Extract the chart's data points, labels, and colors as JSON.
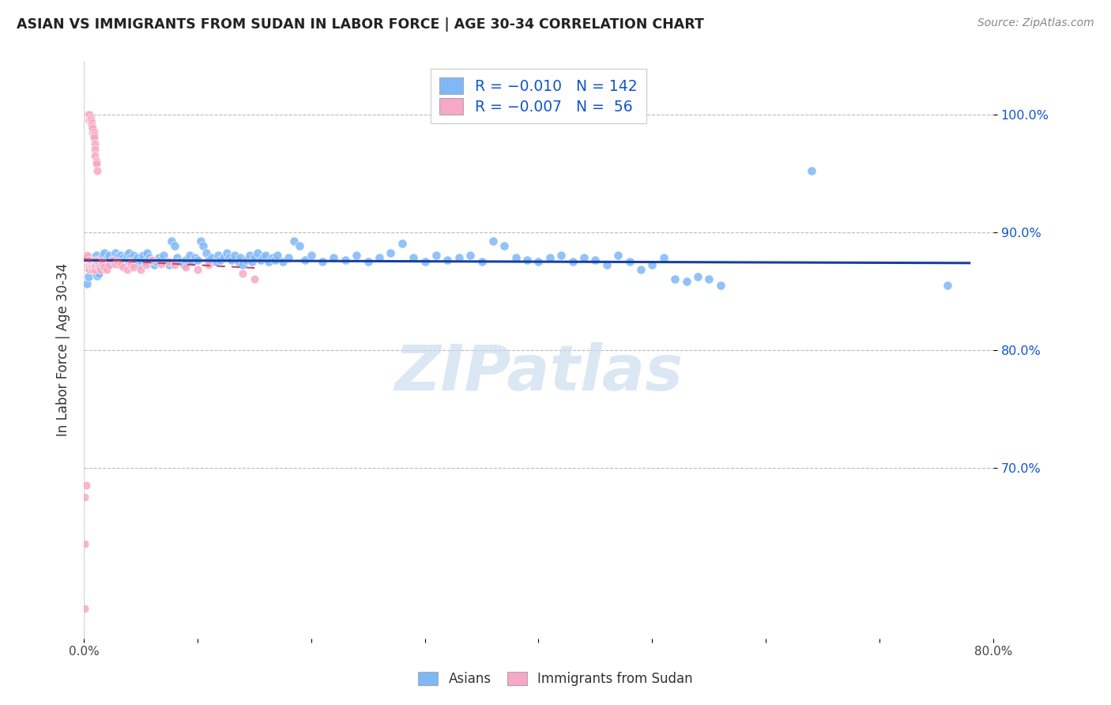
{
  "title": "ASIAN VS IMMIGRANTS FROM SUDAN IN LABOR FORCE | AGE 30-34 CORRELATION CHART",
  "source": "Source: ZipAtlas.com",
  "ylabel": "In Labor Force | Age 30-34",
  "xlim": [
    0.0,
    0.8
  ],
  "ylim": [
    0.555,
    1.045
  ],
  "yticks": [
    0.7,
    0.8,
    0.9,
    1.0
  ],
  "ytick_labels": [
    "70.0%",
    "80.0%",
    "90.0%",
    "100.0%"
  ],
  "xticks": [
    0.0,
    0.1,
    0.2,
    0.3,
    0.4,
    0.5,
    0.6,
    0.7,
    0.8
  ],
  "xtick_labels": [
    "0.0%",
    "",
    "",
    "",
    "",
    "",
    "",
    "",
    "80.0%"
  ],
  "legend_label_asian": "Asians",
  "legend_label_sudan": "Immigrants from Sudan",
  "R_asian": -0.01,
  "N_asian": 142,
  "R_sudan": -0.007,
  "N_sudan": 56,
  "color_asian": "#7eb8f7",
  "color_sudan": "#f7a8c4",
  "trendline_asian_color": "#1a3fa0",
  "trendline_sudan_color": "#cc4466",
  "watermark": "ZIPatlas",
  "background_color": "#ffffff",
  "grid_color": "#bbbbbb",
  "asian_x": [
    0.003,
    0.004,
    0.005,
    0.006,
    0.006,
    0.007,
    0.007,
    0.008,
    0.008,
    0.009,
    0.009,
    0.01,
    0.01,
    0.011,
    0.011,
    0.012,
    0.012,
    0.013,
    0.013,
    0.014,
    0.015,
    0.016,
    0.017,
    0.018,
    0.019,
    0.02,
    0.021,
    0.022,
    0.023,
    0.025,
    0.026,
    0.027,
    0.028,
    0.03,
    0.031,
    0.033,
    0.034,
    0.035,
    0.037,
    0.038,
    0.04,
    0.041,
    0.042,
    0.044,
    0.045,
    0.047,
    0.049,
    0.05,
    0.052,
    0.054,
    0.056,
    0.058,
    0.06,
    0.062,
    0.064,
    0.066,
    0.068,
    0.07,
    0.072,
    0.075,
    0.077,
    0.08,
    0.082,
    0.085,
    0.088,
    0.09,
    0.093,
    0.095,
    0.098,
    0.1,
    0.103,
    0.105,
    0.108,
    0.11,
    0.113,
    0.116,
    0.118,
    0.12,
    0.123,
    0.126,
    0.128,
    0.13,
    0.133,
    0.136,
    0.138,
    0.14,
    0.143,
    0.146,
    0.148,
    0.15,
    0.153,
    0.156,
    0.158,
    0.16,
    0.163,
    0.166,
    0.168,
    0.17,
    0.175,
    0.18,
    0.185,
    0.19,
    0.195,
    0.2,
    0.21,
    0.22,
    0.23,
    0.24,
    0.25,
    0.26,
    0.27,
    0.28,
    0.29,
    0.3,
    0.31,
    0.32,
    0.33,
    0.34,
    0.35,
    0.36,
    0.37,
    0.38,
    0.39,
    0.4,
    0.41,
    0.42,
    0.43,
    0.44,
    0.45,
    0.46,
    0.47,
    0.48,
    0.49,
    0.5,
    0.51,
    0.52,
    0.53,
    0.54,
    0.55,
    0.56,
    0.64,
    0.76
  ],
  "asian_y": [
    0.856,
    0.862,
    0.87,
    0.875,
    0.878,
    0.872,
    0.869,
    0.873,
    0.876,
    0.871,
    0.868,
    0.866,
    0.874,
    0.869,
    0.88,
    0.863,
    0.875,
    0.87,
    0.865,
    0.875,
    0.872,
    0.878,
    0.88,
    0.882,
    0.87,
    0.875,
    0.878,
    0.88,
    0.872,
    0.876,
    0.875,
    0.878,
    0.882,
    0.879,
    0.872,
    0.88,
    0.875,
    0.878,
    0.876,
    0.88,
    0.882,
    0.878,
    0.875,
    0.88,
    0.876,
    0.878,
    0.872,
    0.876,
    0.88,
    0.875,
    0.882,
    0.878,
    0.876,
    0.872,
    0.875,
    0.878,
    0.876,
    0.88,
    0.875,
    0.872,
    0.892,
    0.888,
    0.878,
    0.875,
    0.872,
    0.876,
    0.88,
    0.875,
    0.878,
    0.876,
    0.892,
    0.888,
    0.882,
    0.876,
    0.878,
    0.875,
    0.88,
    0.876,
    0.878,
    0.882,
    0.878,
    0.876,
    0.88,
    0.875,
    0.878,
    0.872,
    0.876,
    0.88,
    0.875,
    0.878,
    0.882,
    0.876,
    0.878,
    0.88,
    0.875,
    0.878,
    0.876,
    0.88,
    0.875,
    0.878,
    0.892,
    0.888,
    0.876,
    0.88,
    0.875,
    0.878,
    0.876,
    0.88,
    0.875,
    0.878,
    0.882,
    0.89,
    0.878,
    0.875,
    0.88,
    0.876,
    0.878,
    0.88,
    0.875,
    0.892,
    0.888,
    0.878,
    0.876,
    0.875,
    0.878,
    0.88,
    0.875,
    0.878,
    0.876,
    0.872,
    0.88,
    0.875,
    0.868,
    0.872,
    0.878,
    0.86,
    0.858,
    0.862,
    0.86,
    0.855,
    0.952,
    0.855
  ],
  "sudan_x": [
    0.002,
    0.002,
    0.003,
    0.003,
    0.003,
    0.004,
    0.004,
    0.004,
    0.005,
    0.005,
    0.005,
    0.006,
    0.006,
    0.007,
    0.007,
    0.008,
    0.008,
    0.009,
    0.009,
    0.01,
    0.01,
    0.011,
    0.011,
    0.012,
    0.013,
    0.014,
    0.015,
    0.016,
    0.017,
    0.018,
    0.02,
    0.022,
    0.025,
    0.028,
    0.03,
    0.033,
    0.035,
    0.038,
    0.04,
    0.042,
    0.044,
    0.05,
    0.055,
    0.06,
    0.068,
    0.075,
    0.08,
    0.09,
    0.1,
    0.11,
    0.001,
    0.001,
    0.001,
    0.002,
    0.14,
    0.15
  ],
  "sudan_y": [
    0.87,
    0.875,
    0.872,
    0.878,
    0.88,
    0.875,
    0.872,
    0.87,
    0.868,
    0.872,
    0.876,
    0.873,
    0.875,
    0.872,
    0.87,
    0.868,
    0.875,
    0.872,
    0.87,
    0.868,
    0.872,
    0.876,
    0.873,
    0.875,
    0.872,
    0.87,
    0.868,
    0.875,
    0.872,
    0.87,
    0.868,
    0.872,
    0.876,
    0.873,
    0.875,
    0.872,
    0.87,
    0.868,
    0.875,
    0.872,
    0.87,
    0.868,
    0.872,
    0.876,
    0.873,
    0.875,
    0.872,
    0.87,
    0.868,
    0.872,
    0.675,
    0.635,
    0.58,
    0.685,
    0.865,
    0.86
  ],
  "sudan_top_x": [
    0.002,
    0.003,
    0.003,
    0.004,
    0.004,
    0.004,
    0.005,
    0.005,
    0.005,
    0.006,
    0.006,
    0.006,
    0.007,
    0.007,
    0.008,
    0.008,
    0.008,
    0.009,
    0.009,
    0.009,
    0.01,
    0.01,
    0.01,
    0.011,
    0.011,
    0.012
  ],
  "sudan_top_y": [
    0.998,
    1.0,
    1.0,
    1.0,
    0.997,
    0.995,
    0.998,
    1.0,
    0.995,
    0.993,
    0.997,
    0.995,
    0.993,
    0.99,
    0.987,
    0.985,
    0.988,
    0.985,
    0.982,
    0.98,
    0.975,
    0.97,
    0.965,
    0.96,
    0.958,
    0.952
  ]
}
